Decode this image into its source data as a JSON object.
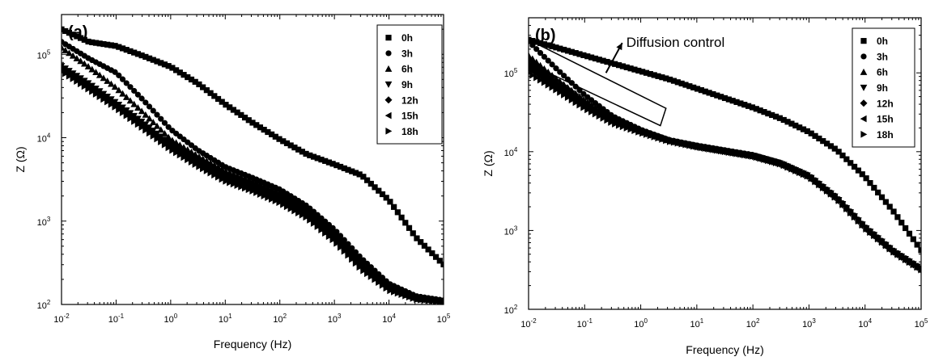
{
  "chart_data": [
    {
      "type": "scatter",
      "panel_label": "(a)",
      "xlabel": "Frequency (Hz)",
      "ylabel": "Z (Ω)",
      "xscale": "log",
      "yscale": "log",
      "xlim": [
        0.01,
        100000
      ],
      "ylim": [
        100,
        300000
      ],
      "x_ticks": [
        {
          "value": 0.01,
          "base": "10",
          "exp": "-2"
        },
        {
          "value": 0.1,
          "base": "10",
          "exp": "-1"
        },
        {
          "value": 1,
          "base": "10",
          "exp": "0"
        },
        {
          "value": 10,
          "base": "10",
          "exp": "1"
        },
        {
          "value": 100,
          "base": "10",
          "exp": "2"
        },
        {
          "value": 1000,
          "base": "10",
          "exp": "3"
        },
        {
          "value": 10000,
          "base": "10",
          "exp": "4"
        },
        {
          "value": 100000,
          "base": "10",
          "exp": "5"
        }
      ],
      "y_ticks": [
        {
          "value": 100,
          "base": "10",
          "exp": "2"
        },
        {
          "value": 1000,
          "base": "10",
          "exp": "3"
        },
        {
          "value": 10000,
          "base": "10",
          "exp": "4"
        },
        {
          "value": 100000,
          "base": "10",
          "exp": "5"
        }
      ],
      "legend_position": "top-right",
      "series": [
        {
          "name": "0h",
          "marker": "square",
          "logx": [
            -2,
            -1.5,
            -1,
            -0.5,
            0,
            0.5,
            1,
            1.5,
            2,
            2.5,
            3,
            3.5,
            4,
            4.5,
            5
          ],
          "logy": [
            5.3,
            5.15,
            5.1,
            4.98,
            4.85,
            4.65,
            4.4,
            4.18,
            3.98,
            3.8,
            3.68,
            3.55,
            3.25,
            2.8,
            2.48
          ]
        },
        {
          "name": "3h",
          "marker": "circle",
          "logx": [
            -2,
            -1.5,
            -1,
            -0.5,
            0,
            0.5,
            1,
            1.5,
            2,
            2.5,
            3,
            3.5,
            4,
            4.5,
            5
          ],
          "logy": [
            5.15,
            4.95,
            4.78,
            4.45,
            4.1,
            3.85,
            3.65,
            3.52,
            3.38,
            3.18,
            2.9,
            2.55,
            2.25,
            2.1,
            2.05
          ]
        },
        {
          "name": "6h",
          "marker": "triangle-up",
          "logx": [
            -2,
            -1.5,
            -1,
            -0.5,
            0,
            0.5,
            1,
            1.5,
            2,
            2.5,
            3,
            3.5,
            4,
            4.5,
            5
          ],
          "logy": [
            5.08,
            4.85,
            4.6,
            4.3,
            3.98,
            3.78,
            3.6,
            3.48,
            3.34,
            3.15,
            2.88,
            2.52,
            2.22,
            2.08,
            2.04
          ]
        },
        {
          "name": "9h",
          "marker": "triangle-down",
          "logx": [
            -2,
            -1.5,
            -1,
            -0.5,
            0,
            0.5,
            1,
            1.5,
            2,
            2.5,
            3,
            3.5,
            4,
            4.5,
            5
          ],
          "logy": [
            4.86,
            4.65,
            4.42,
            4.18,
            3.92,
            3.72,
            3.54,
            3.42,
            3.28,
            3.1,
            2.82,
            2.48,
            2.2,
            2.07,
            2.04
          ]
        },
        {
          "name": "12h",
          "marker": "diamond",
          "logx": [
            -2,
            -1.5,
            -1,
            -0.5,
            0,
            0.5,
            1,
            1.5,
            2,
            2.5,
            3,
            3.5,
            4,
            4.5,
            5
          ],
          "logy": [
            4.84,
            4.62,
            4.4,
            4.15,
            3.9,
            3.7,
            3.52,
            3.4,
            3.26,
            3.08,
            2.8,
            2.46,
            2.19,
            2.07,
            2.04
          ]
        },
        {
          "name": "15h",
          "marker": "triangle-left",
          "logx": [
            -2,
            -1.5,
            -1,
            -0.5,
            0,
            0.5,
            1,
            1.5,
            2,
            2.5,
            3,
            3.5,
            4,
            4.5,
            5
          ],
          "logy": [
            4.82,
            4.6,
            4.38,
            4.13,
            3.88,
            3.68,
            3.5,
            3.38,
            3.24,
            3.06,
            2.78,
            2.44,
            2.18,
            2.06,
            2.03
          ]
        },
        {
          "name": "18h",
          "marker": "triangle-right",
          "logx": [
            -2,
            -1.5,
            -1,
            -0.5,
            0,
            0.5,
            1,
            1.5,
            2,
            2.5,
            3,
            3.5,
            4,
            4.5,
            5
          ],
          "logy": [
            4.8,
            4.58,
            4.36,
            4.11,
            3.86,
            3.66,
            3.48,
            3.36,
            3.22,
            3.04,
            2.76,
            2.42,
            2.17,
            2.06,
            2.03
          ]
        }
      ]
    },
    {
      "type": "scatter",
      "panel_label": "(b)",
      "xlabel": "Frequency (Hz)",
      "ylabel": "Z (Ω)",
      "xscale": "log",
      "yscale": "log",
      "xlim": [
        0.01,
        100000
      ],
      "ylim": [
        100,
        500000
      ],
      "x_ticks": [
        {
          "value": 0.01,
          "base": "10",
          "exp": "-2"
        },
        {
          "value": 0.1,
          "base": "10",
          "exp": "-1"
        },
        {
          "value": 1,
          "base": "10",
          "exp": "0"
        },
        {
          "value": 10,
          "base": "10",
          "exp": "1"
        },
        {
          "value": 100,
          "base": "10",
          "exp": "2"
        },
        {
          "value": 1000,
          "base": "10",
          "exp": "3"
        },
        {
          "value": 10000,
          "base": "10",
          "exp": "4"
        },
        {
          "value": 100000,
          "base": "10",
          "exp": "5"
        }
      ],
      "y_ticks": [
        {
          "value": 100,
          "base": "10",
          "exp": "2"
        },
        {
          "value": 1000,
          "base": "10",
          "exp": "3"
        },
        {
          "value": 10000,
          "base": "10",
          "exp": "4"
        },
        {
          "value": 100000,
          "base": "10",
          "exp": "5"
        }
      ],
      "legend_position": "top-right",
      "annotation": "Diffusion control",
      "series": [
        {
          "name": "0h",
          "marker": "square",
          "logx": [
            -2,
            -1.5,
            -1,
            -0.5,
            0,
            0.5,
            1,
            1.5,
            2,
            2.5,
            3,
            3.5,
            4,
            4.5,
            5
          ],
          "logy": [
            5.42,
            5.32,
            5.22,
            5.12,
            5.02,
            4.92,
            4.8,
            4.68,
            4.56,
            4.42,
            4.25,
            4.02,
            3.68,
            3.25,
            2.75
          ]
        },
        {
          "name": "3h",
          "marker": "circle",
          "logx": [
            -2,
            -1.5,
            -1,
            -0.5,
            0,
            0.5,
            1,
            1.5,
            2,
            2.5,
            3,
            3.5,
            4,
            4.5,
            5
          ],
          "logy": [
            5.4,
            5.05,
            4.72,
            4.45,
            4.28,
            4.15,
            4.08,
            4.02,
            3.96,
            3.86,
            3.7,
            3.42,
            3.05,
            2.75,
            2.52
          ]
        },
        {
          "name": "6h",
          "marker": "triangle-up",
          "logx": [
            -2,
            -1.5,
            -1,
            -0.5,
            0,
            0.5,
            1,
            1.5,
            2,
            2.5,
            3,
            3.5,
            4,
            4.5,
            5
          ],
          "logy": [
            5.22,
            4.92,
            4.65,
            4.42,
            4.27,
            4.15,
            4.07,
            4.01,
            3.95,
            3.85,
            3.69,
            3.41,
            3.04,
            2.74,
            2.51
          ]
        },
        {
          "name": "9h",
          "marker": "triangle-down",
          "logx": [
            -2,
            -1.5,
            -1,
            -0.5,
            0,
            0.5,
            1,
            1.5,
            2,
            2.5,
            3,
            3.5,
            4,
            4.5,
            5
          ],
          "logy": [
            5.15,
            4.88,
            4.62,
            4.4,
            4.26,
            4.14,
            4.07,
            4.01,
            3.95,
            3.85,
            3.69,
            3.41,
            3.04,
            2.74,
            2.51
          ]
        },
        {
          "name": "12h",
          "marker": "diamond",
          "logx": [
            -2,
            -1.5,
            -1,
            -0.5,
            0,
            0.5,
            1,
            1.5,
            2,
            2.5,
            3,
            3.5,
            4,
            4.5,
            5
          ],
          "logy": [
            5.1,
            4.85,
            4.6,
            4.39,
            4.25,
            4.14,
            4.06,
            4.0,
            3.94,
            3.84,
            3.68,
            3.4,
            3.03,
            2.73,
            2.5
          ]
        },
        {
          "name": "15h",
          "marker": "triangle-left",
          "logx": [
            -2,
            -1.5,
            -1,
            -0.5,
            0,
            0.5,
            1,
            1.5,
            2,
            2.5,
            3,
            3.5,
            4,
            4.5,
            5
          ],
          "logy": [
            5.05,
            4.82,
            4.58,
            4.38,
            4.25,
            4.13,
            4.06,
            4.0,
            3.94,
            3.84,
            3.68,
            3.4,
            3.03,
            2.73,
            2.5
          ]
        },
        {
          "name": "18h",
          "marker": "triangle-right",
          "logx": [
            -2,
            -1.5,
            -1,
            -0.5,
            0,
            0.5,
            1,
            1.5,
            2,
            2.5,
            3,
            3.5,
            4,
            4.5,
            5
          ],
          "logy": [
            5.0,
            4.78,
            4.55,
            4.36,
            4.24,
            4.13,
            4.06,
            4.0,
            3.94,
            3.84,
            3.68,
            3.4,
            3.03,
            2.73,
            2.5
          ]
        }
      ]
    }
  ]
}
